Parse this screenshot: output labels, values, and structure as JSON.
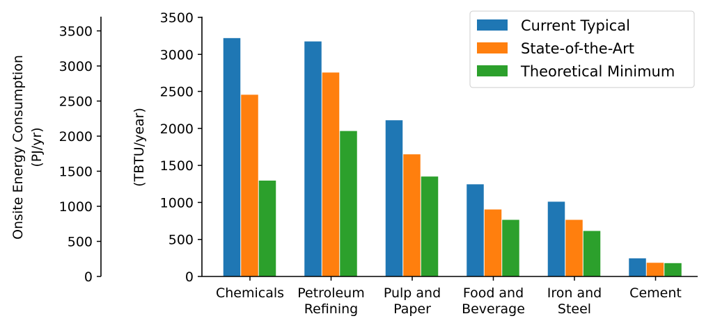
{
  "chart_data": {
    "type": "bar",
    "title": "",
    "categories": [
      "Chemicals",
      "Petroleum Refining",
      "Pulp and Paper",
      "Food and Beverage",
      "Iron and Steel",
      "Cement"
    ],
    "category_lines": [
      [
        "Chemicals"
      ],
      [
        "Petroleum",
        "Refining"
      ],
      [
        "Pulp and",
        "Paper"
      ],
      [
        "Food and",
        "Beverage"
      ],
      [
        "Iron and",
        "Steel"
      ],
      [
        "Cement"
      ]
    ],
    "series": [
      {
        "name": "Current Typical",
        "color": "#1f77b4",
        "values": [
          3220,
          3175,
          2110,
          1245,
          1010,
          245
        ]
      },
      {
        "name": "State-of-the-Art",
        "color": "#ff7f0e",
        "values": [
          2455,
          2755,
          1650,
          905,
          765,
          185
        ]
      },
      {
        "name": "Theoretical Minimum",
        "color": "#2ca02c",
        "values": [
          1295,
          1965,
          1350,
          765,
          615,
          180
        ]
      }
    ],
    "primary_axis": {
      "ylabel": "(TBTU/year)",
      "ylim": [
        0,
        3500
      ],
      "ticks": [
        "0",
        "500",
        "1000",
        "1500",
        "2000",
        "2500",
        "3000",
        "3500"
      ]
    },
    "secondary_axis": {
      "ylabel_lines": [
        "Onsite Energy Consumption",
        "(PJ/yr)"
      ],
      "ylim": [
        0,
        3692.75
      ],
      "ticks": [
        "0",
        "500",
        "1000",
        "1500",
        "2000",
        "2500",
        "3000",
        "3500"
      ]
    },
    "legend_position": "top-right",
    "grid": false
  }
}
